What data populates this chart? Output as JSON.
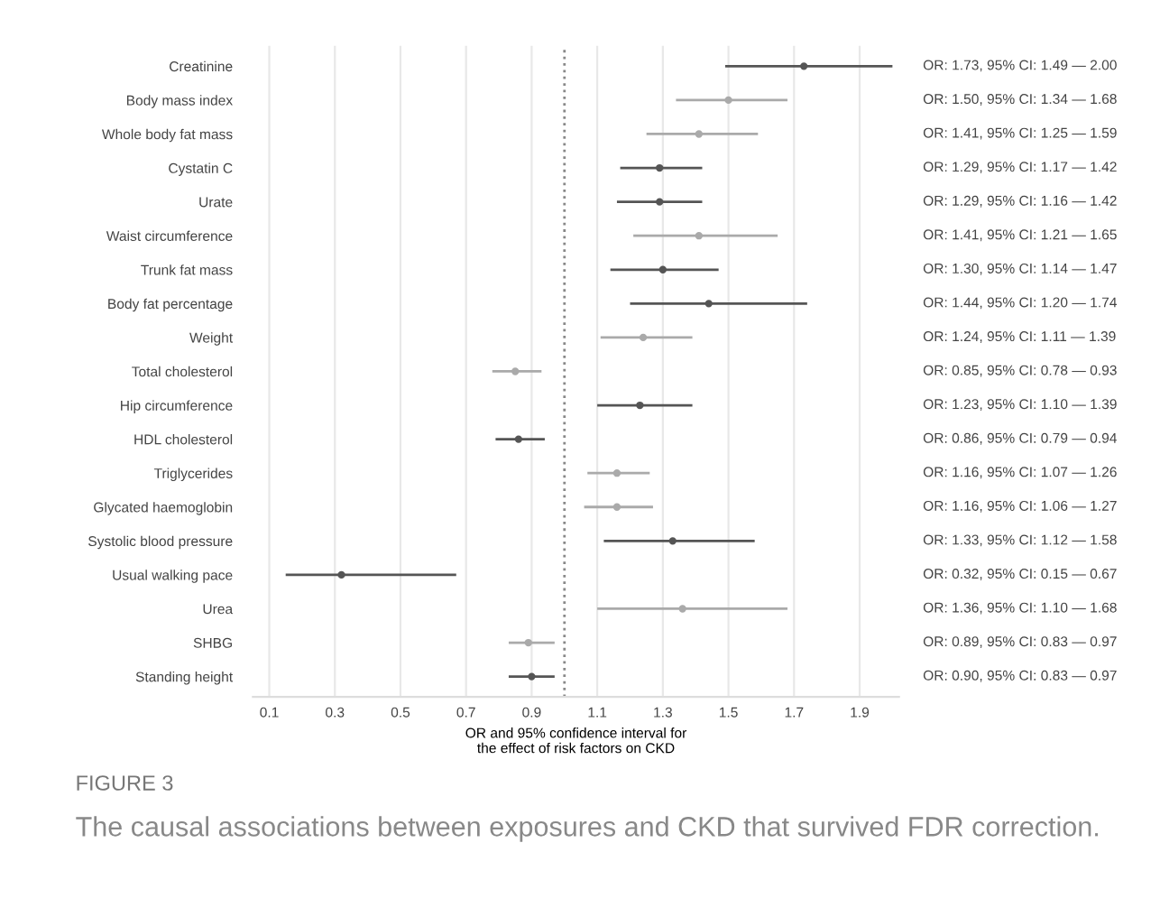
{
  "chart_data": {
    "type": "scatter",
    "orientation": "horizontal",
    "categories": [
      "Creatinine",
      "Body mass index",
      "Whole body fat mass",
      "Cystatin C",
      "Urate",
      "Waist circumference",
      "Trunk fat mass",
      "Body fat percentage",
      "Weight",
      "Total cholesterol",
      "Hip circumference",
      "HDL cholesterol",
      "Triglycerides",
      "Glycated haemoglobin",
      "Systolic blood pressure",
      "Usual walking pace",
      "Urea",
      "SHBG",
      "Standing height"
    ],
    "values": [
      1.73,
      1.5,
      1.41,
      1.29,
      1.29,
      1.41,
      1.3,
      1.44,
      1.24,
      0.85,
      1.23,
      0.86,
      1.16,
      1.16,
      1.33,
      0.32,
      1.36,
      0.89,
      0.9
    ],
    "errors": [
      [
        1.49,
        2.0
      ],
      [
        1.34,
        1.68
      ],
      [
        1.25,
        1.59
      ],
      [
        1.17,
        1.42
      ],
      [
        1.16,
        1.42
      ],
      [
        1.21,
        1.65
      ],
      [
        1.14,
        1.47
      ],
      [
        1.2,
        1.74
      ],
      [
        1.11,
        1.39
      ],
      [
        0.78,
        0.93
      ],
      [
        1.1,
        1.39
      ],
      [
        0.79,
        0.94
      ],
      [
        1.07,
        1.26
      ],
      [
        1.06,
        1.27
      ],
      [
        1.12,
        1.58
      ],
      [
        0.15,
        0.67
      ],
      [
        1.1,
        1.68
      ],
      [
        0.83,
        0.97
      ],
      [
        0.83,
        0.97
      ]
    ],
    "value_labels": [
      "OR: 1.73, 95% CI: 1.49 — 2.00",
      "OR: 1.50, 95% CI: 1.34 — 1.68",
      "OR: 1.41, 95% CI: 1.25 — 1.59",
      "OR: 1.29, 95% CI: 1.17 — 1.42",
      "OR: 1.29, 95% CI: 1.16 — 1.42",
      "OR: 1.41, 95% CI: 1.21 — 1.65",
      "OR: 1.30, 95% CI: 1.14 — 1.47",
      "OR: 1.44, 95% CI: 1.20 — 1.74",
      "OR: 1.24, 95% CI: 1.11 — 1.39",
      "OR: 0.85, 95% CI: 0.78 — 0.93",
      "OR: 1.23, 95% CI: 1.10 — 1.39",
      "OR: 0.86, 95% CI: 0.79 — 0.94",
      "OR: 1.16, 95% CI: 1.07 — 1.26",
      "OR: 1.16, 95% CI: 1.06 — 1.27",
      "OR: 1.33, 95% CI: 1.12 — 1.58",
      "OR: 0.32, 95% CI: 0.15 — 0.67",
      "OR: 1.36, 95% CI: 1.10 — 1.68",
      "OR: 0.89, 95% CI: 0.83 — 0.97",
      "OR: 0.90, 95% CI: 0.83 — 0.97"
    ],
    "colors": [
      "#555555",
      "#aaaaaa",
      "#aaaaaa",
      "#555555",
      "#555555",
      "#aaaaaa",
      "#555555",
      "#555555",
      "#aaaaaa",
      "#aaaaaa",
      "#555555",
      "#555555",
      "#aaaaaa",
      "#aaaaaa",
      "#555555",
      "#555555",
      "#aaaaaa",
      "#aaaaaa",
      "#555555"
    ],
    "xlim": [
      0.05,
      2.02
    ],
    "xticks": [
      0.1,
      0.3,
      0.5,
      0.7,
      0.9,
      1.1,
      1.3,
      1.5,
      1.7,
      1.9
    ],
    "xlabel": "OR and 95% confidence interval for\nthe effect of risk factors on CKD",
    "grid": "x",
    "marker": "circle",
    "ref_lines": [
      {
        "axis": "x",
        "value": 1,
        "label": null,
        "color": "#888888",
        "line_style": "dotted"
      }
    ],
    "annotations": [
      "FIGURE 3",
      "The causal associations between exposures and CKD that survived FDR correction."
    ]
  }
}
